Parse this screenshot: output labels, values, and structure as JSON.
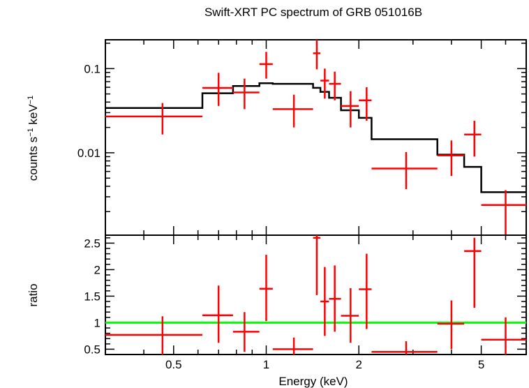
{
  "chart_data": {
    "type": "scatter",
    "title": "Swift-XRT PC spectrum of GRB 051016B",
    "x_scale": "log",
    "xlim": [
      0.3,
      7.0
    ],
    "xlabel": "Energy (keV)",
    "x_ticks": [
      0.5,
      1,
      2,
      5
    ],
    "x_tick_labels": [
      "0.5",
      "1",
      "2",
      "5"
    ],
    "colors": {
      "data": "#ff0000",
      "model": "#000000",
      "unity": "#00ff00",
      "axes": "#000000"
    },
    "panels": [
      {
        "id": "spectrum",
        "ylabel_text": "counts s",
        "ylabel_sup1": "−1",
        "ylabel_mid": " keV",
        "ylabel_sup2": "−1",
        "y_scale": "log",
        "ylim": [
          0.00105,
          0.22
        ],
        "y_ticks": [
          0.1,
          0.01
        ],
        "y_tick_labels": [
          "0.1",
          "0.01"
        ],
        "model_step": {
          "edges": [
            0.3,
            0.62,
            0.78,
            0.95,
            1.05,
            1.42,
            1.5,
            1.6,
            1.75,
            2.0,
            2.2,
            3.6,
            4.4,
            5.0,
            7.0
          ],
          "values": [
            0.034,
            0.051,
            0.062,
            0.067,
            0.066,
            0.059,
            0.053,
            0.045,
            0.032,
            0.026,
            0.0145,
            0.0095,
            0.0068,
            0.0034
          ]
        },
        "data": [
          {
            "x": 0.46,
            "xlo": 0.3,
            "xhi": 0.62,
            "y": 0.027,
            "ylo": 0.0165,
            "yhi": 0.039
          },
          {
            "x": 0.7,
            "xlo": 0.62,
            "xhi": 0.78,
            "y": 0.059,
            "ylo": 0.036,
            "yhi": 0.089
          },
          {
            "x": 0.85,
            "xlo": 0.78,
            "xhi": 0.95,
            "y": 0.052,
            "ylo": 0.033,
            "yhi": 0.076
          },
          {
            "x": 1.0,
            "xlo": 0.95,
            "xhi": 1.05,
            "y": 0.113,
            "ylo": 0.076,
            "yhi": 0.158
          },
          {
            "x": 1.23,
            "xlo": 1.05,
            "xhi": 1.42,
            "y": 0.033,
            "ylo": 0.02,
            "yhi": 0.049
          },
          {
            "x": 1.46,
            "xlo": 1.42,
            "xhi": 1.5,
            "y": 0.152,
            "ylo": 0.098,
            "yhi": 0.22
          },
          {
            "x": 1.55,
            "xlo": 1.5,
            "xhi": 1.6,
            "y": 0.072,
            "ylo": 0.044,
            "yhi": 0.1
          },
          {
            "x": 1.67,
            "xlo": 1.6,
            "xhi": 1.75,
            "y": 0.066,
            "ylo": 0.042,
            "yhi": 0.092
          },
          {
            "x": 1.88,
            "xlo": 1.75,
            "xhi": 2.0,
            "y": 0.036,
            "ylo": 0.02,
            "yhi": 0.054
          },
          {
            "x": 2.12,
            "xlo": 2.0,
            "xhi": 2.2,
            "y": 0.042,
            "ylo": 0.024,
            "yhi": 0.06
          },
          {
            "x": 2.85,
            "xlo": 2.2,
            "xhi": 3.6,
            "y": 0.0065,
            "ylo": 0.0037,
            "yhi": 0.0102
          },
          {
            "x": 4.0,
            "xlo": 3.6,
            "xhi": 4.4,
            "y": 0.0093,
            "ylo": 0.0053,
            "yhi": 0.014
          },
          {
            "x": 4.75,
            "xlo": 4.4,
            "xhi": 5.0,
            "y": 0.0165,
            "ylo": 0.009,
            "yhi": 0.024
          },
          {
            "x": 6.0,
            "xlo": 5.0,
            "xhi": 7.0,
            "y": 0.0024,
            "ylo": 0.00105,
            "yhi": 0.0036
          }
        ]
      },
      {
        "id": "ratio",
        "ylabel_text": "ratio",
        "y_scale": "linear",
        "ylim": [
          0.4,
          2.65
        ],
        "y_ticks": [
          0.5,
          1,
          1.5,
          2,
          2.5
        ],
        "y_tick_labels": [
          "0.5",
          "1",
          "1.5",
          "2",
          "2.5"
        ],
        "unity_line": 1,
        "data": [
          {
            "x": 0.46,
            "xlo": 0.3,
            "xhi": 0.62,
            "y": 0.77,
            "ylo": 0.4,
            "yhi": 1.12
          },
          {
            "x": 0.7,
            "xlo": 0.62,
            "xhi": 0.78,
            "y": 1.14,
            "ylo": 0.62,
            "yhi": 1.7
          },
          {
            "x": 0.85,
            "xlo": 0.78,
            "xhi": 0.95,
            "y": 0.83,
            "ylo": 0.45,
            "yhi": 1.2
          },
          {
            "x": 1.0,
            "xlo": 0.95,
            "xhi": 1.05,
            "y": 1.64,
            "ylo": 1.03,
            "yhi": 2.28
          },
          {
            "x": 1.23,
            "xlo": 1.05,
            "xhi": 1.42,
            "y": 0.5,
            "ylo": 0.4,
            "yhi": 0.72
          },
          {
            "x": 1.46,
            "xlo": 1.42,
            "xhi": 1.5,
            "y": 2.6,
            "ylo": 1.52,
            "yhi": 2.65
          },
          {
            "x": 1.55,
            "xlo": 1.5,
            "xhi": 1.6,
            "y": 1.4,
            "ylo": 0.75,
            "yhi": 2.05
          },
          {
            "x": 1.67,
            "xlo": 1.6,
            "xhi": 1.75,
            "y": 1.45,
            "ylo": 0.83,
            "yhi": 2.08
          },
          {
            "x": 1.88,
            "xlo": 1.75,
            "xhi": 2.0,
            "y": 1.13,
            "ylo": 0.62,
            "yhi": 1.65
          },
          {
            "x": 2.12,
            "xlo": 2.0,
            "xhi": 2.2,
            "y": 1.63,
            "ylo": 0.88,
            "yhi": 2.3
          },
          {
            "x": 2.85,
            "xlo": 2.2,
            "xhi": 3.6,
            "y": 0.45,
            "ylo": 0.4,
            "yhi": 0.65
          },
          {
            "x": 4.0,
            "xlo": 3.6,
            "xhi": 4.4,
            "y": 0.98,
            "ylo": 0.5,
            "yhi": 1.42
          },
          {
            "x": 4.75,
            "xlo": 4.4,
            "xhi": 5.0,
            "y": 2.35,
            "ylo": 1.28,
            "yhi": 2.6
          },
          {
            "x": 6.0,
            "xlo": 5.0,
            "xhi": 7.0,
            "y": 0.68,
            "ylo": 0.4,
            "yhi": 1.1
          }
        ]
      }
    ]
  }
}
